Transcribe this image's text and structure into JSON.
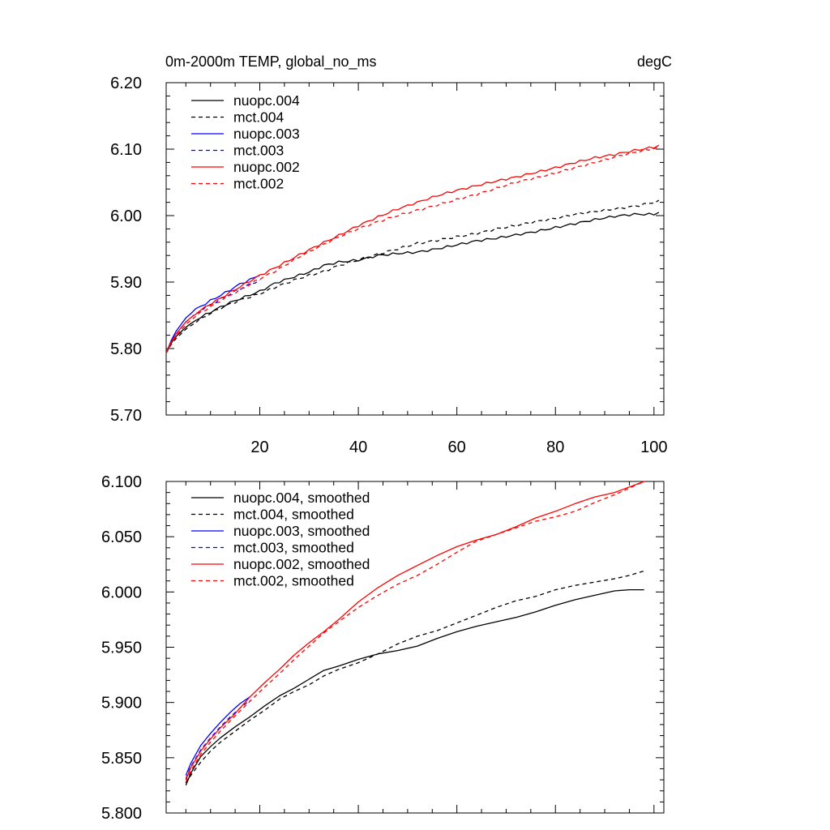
{
  "chart_data": [
    {
      "type": "line",
      "title_left": "0m-2000m TEMP, global_no_ms",
      "title_right": "degC",
      "xlim": [
        1,
        102
      ],
      "ylim": [
        5.7,
        6.2
      ],
      "xticks": [
        20,
        40,
        60,
        80,
        100
      ],
      "xtick_labels": [
        "20",
        "40",
        "60",
        "80",
        "100"
      ],
      "yticks": [
        5.7,
        5.8,
        5.9,
        6.0,
        6.1,
        6.2
      ],
      "ytick_labels": [
        "5.70",
        "5.80",
        "5.90",
        "6.00",
        "6.10",
        "6.20"
      ],
      "legend_position": "top-left",
      "series": [
        {
          "name": "nuopc.004",
          "color": "#000000",
          "dash": "solid",
          "x": [
            1,
            2,
            3,
            5,
            7,
            10,
            13,
            16,
            20,
            23,
            27,
            30,
            33,
            36,
            40,
            44,
            48,
            52,
            56,
            60,
            64,
            68,
            72,
            76,
            80,
            84,
            88,
            92,
            96,
            100,
            101
          ],
          "y": [
            5.793,
            5.808,
            5.818,
            5.832,
            5.843,
            5.855,
            5.866,
            5.875,
            5.886,
            5.898,
            5.908,
            5.915,
            5.925,
            5.93,
            5.933,
            5.94,
            5.943,
            5.945,
            5.95,
            5.956,
            5.962,
            5.966,
            5.971,
            5.976,
            5.982,
            5.988,
            5.994,
            5.999,
            6.002,
            6.002,
            6.005
          ]
        },
        {
          "name": "mct.004",
          "color": "#000000",
          "dash": "dashed",
          "x": [
            1,
            2,
            3,
            5,
            7,
            10,
            13,
            16,
            20,
            23,
            27,
            30,
            33,
            36,
            40,
            44,
            48,
            52,
            56,
            60,
            64,
            68,
            72,
            76,
            80,
            84,
            88,
            92,
            96,
            100,
            101
          ],
          "y": [
            5.793,
            5.806,
            5.815,
            5.829,
            5.84,
            5.853,
            5.864,
            5.873,
            5.882,
            5.892,
            5.903,
            5.91,
            5.916,
            5.925,
            5.933,
            5.942,
            5.95,
            5.958,
            5.963,
            5.968,
            5.973,
            5.98,
            5.985,
            5.991,
            5.996,
            6.002,
            6.006,
            6.01,
            6.014,
            6.02,
            6.023
          ]
        },
        {
          "name": "nuopc.003",
          "color": "#0000ff",
          "dash": "solid",
          "x": [
            1,
            2,
            3,
            5,
            7,
            10,
            13,
            16,
            19,
            20
          ],
          "y": [
            5.793,
            5.812,
            5.826,
            5.846,
            5.859,
            5.872,
            5.884,
            5.897,
            5.907,
            5.91
          ]
        },
        {
          "name": "mct.003",
          "color": "#0000ff",
          "dash": "dashed",
          "x": [
            1,
            2,
            3,
            5,
            7,
            10,
            13,
            16,
            19,
            20
          ],
          "y": [
            5.793,
            5.81,
            5.822,
            5.84,
            5.852,
            5.866,
            5.878,
            5.89,
            5.9,
            5.903
          ]
        },
        {
          "name": "nuopc.002",
          "color": "#ff0000",
          "dash": "solid",
          "x": [
            1,
            2,
            3,
            5,
            7,
            10,
            13,
            16,
            20,
            24,
            28,
            32,
            36,
            40,
            44,
            48,
            52,
            56,
            60,
            64,
            68,
            72,
            76,
            80,
            84,
            88,
            92,
            96,
            100,
            101
          ],
          "y": [
            5.793,
            5.81,
            5.822,
            5.84,
            5.853,
            5.867,
            5.88,
            5.893,
            5.91,
            5.925,
            5.941,
            5.956,
            5.97,
            5.985,
            5.998,
            6.01,
            6.02,
            6.03,
            6.038,
            6.045,
            6.052,
            6.058,
            6.065,
            6.072,
            6.08,
            6.087,
            6.092,
            6.098,
            6.103,
            6.106
          ]
        },
        {
          "name": "mct.002",
          "color": "#ff0000",
          "dash": "dashed",
          "x": [
            1,
            2,
            3,
            5,
            7,
            10,
            13,
            16,
            20,
            24,
            28,
            32,
            36,
            40,
            44,
            48,
            52,
            56,
            60,
            64,
            68,
            72,
            76,
            80,
            84,
            88,
            92,
            96,
            100,
            101
          ],
          "y": [
            5.793,
            5.808,
            5.819,
            5.836,
            5.849,
            5.863,
            5.876,
            5.888,
            5.905,
            5.92,
            5.938,
            5.953,
            5.968,
            5.98,
            5.991,
            6.0,
            6.008,
            6.016,
            6.024,
            6.032,
            6.041,
            6.05,
            6.057,
            6.064,
            6.072,
            6.08,
            6.088,
            6.095,
            6.101,
            6.104
          ]
        }
      ]
    },
    {
      "type": "line",
      "xlim": [
        1,
        102
      ],
      "ylim": [
        5.8,
        6.1
      ],
      "xticks": [
        20,
        40,
        60,
        80,
        100
      ],
      "yticks": [
        5.8,
        5.85,
        5.9,
        5.95,
        6.0,
        6.05,
        6.1
      ],
      "ytick_labels": [
        "5.800",
        "5.850",
        "5.900",
        "5.950",
        "6.000",
        "6.050",
        "6.100"
      ],
      "legend_position": "top-left",
      "series": [
        {
          "name": "nuopc.004, smoothed",
          "color": "#000000",
          "dash": "solid",
          "x": [
            5,
            6,
            8,
            10,
            12,
            15,
            18,
            21,
            24,
            27,
            30,
            33,
            36,
            40,
            44,
            48,
            52,
            56,
            60,
            64,
            68,
            72,
            76,
            80,
            84,
            88,
            92,
            95,
            98
          ],
          "y": [
            5.825,
            5.836,
            5.851,
            5.86,
            5.868,
            5.878,
            5.887,
            5.897,
            5.906,
            5.913,
            5.921,
            5.929,
            5.933,
            5.939,
            5.944,
            5.947,
            5.951,
            5.958,
            5.964,
            5.969,
            5.973,
            5.977,
            5.982,
            5.988,
            5.993,
            5.997,
            6.001,
            6.002,
            6.002
          ]
        },
        {
          "name": "mct.004, smoothed",
          "color": "#000000",
          "dash": "dashed",
          "x": [
            5,
            6,
            8,
            10,
            12,
            15,
            18,
            21,
            24,
            27,
            30,
            33,
            36,
            40,
            44,
            48,
            52,
            56,
            60,
            64,
            68,
            72,
            76,
            80,
            84,
            88,
            92,
            95,
            98
          ],
          "y": [
            5.827,
            5.834,
            5.846,
            5.856,
            5.864,
            5.874,
            5.884,
            5.893,
            5.903,
            5.91,
            5.916,
            5.924,
            5.93,
            5.936,
            5.944,
            5.953,
            5.96,
            5.965,
            5.972,
            5.979,
            5.986,
            5.992,
            5.996,
            6.002,
            6.006,
            6.009,
            6.012,
            6.015,
            6.019
          ]
        },
        {
          "name": "nuopc.003, smoothed",
          "color": "#0000ff",
          "dash": "solid",
          "x": [
            5,
            6,
            8,
            10,
            12,
            14,
            16,
            18
          ],
          "y": [
            5.834,
            5.845,
            5.861,
            5.872,
            5.882,
            5.891,
            5.899,
            5.905
          ]
        },
        {
          "name": "mct.003, smoothed",
          "color": "#0000ff",
          "dash": "dashed",
          "x": [
            5,
            6,
            8,
            10,
            12,
            14,
            16,
            18
          ],
          "y": [
            5.831,
            5.842,
            5.857,
            5.868,
            5.878,
            5.887,
            5.895,
            5.902
          ]
        },
        {
          "name": "nuopc.002, smoothed",
          "color": "#ff0000",
          "dash": "solid",
          "x": [
            5,
            6,
            8,
            10,
            12,
            15,
            18,
            21,
            24,
            27,
            30,
            33,
            36,
            40,
            44,
            48,
            52,
            56,
            60,
            64,
            68,
            72,
            76,
            80,
            84,
            88,
            92,
            95,
            98
          ],
          "y": [
            5.83,
            5.841,
            5.856,
            5.867,
            5.877,
            5.89,
            5.905,
            5.918,
            5.93,
            5.943,
            5.954,
            5.964,
            5.975,
            5.991,
            6.004,
            6.015,
            6.024,
            6.033,
            6.041,
            6.047,
            6.052,
            6.059,
            6.067,
            6.073,
            6.08,
            6.086,
            6.09,
            6.095,
            6.1
          ]
        },
        {
          "name": "mct.002, smoothed",
          "color": "#ff0000",
          "dash": "dashed",
          "x": [
            5,
            6,
            8,
            10,
            12,
            15,
            18,
            21,
            24,
            27,
            30,
            33,
            36,
            40,
            44,
            48,
            52,
            56,
            60,
            64,
            68,
            72,
            76,
            80,
            84,
            88,
            92,
            95,
            98
          ],
          "y": [
            5.828,
            5.838,
            5.853,
            5.864,
            5.874,
            5.888,
            5.901,
            5.914,
            5.926,
            5.939,
            5.951,
            5.963,
            5.973,
            5.986,
            5.997,
            6.007,
            6.015,
            6.025,
            6.036,
            6.046,
            6.052,
            6.058,
            6.064,
            6.068,
            6.073,
            6.081,
            6.088,
            6.094,
            6.1
          ]
        }
      ]
    }
  ]
}
